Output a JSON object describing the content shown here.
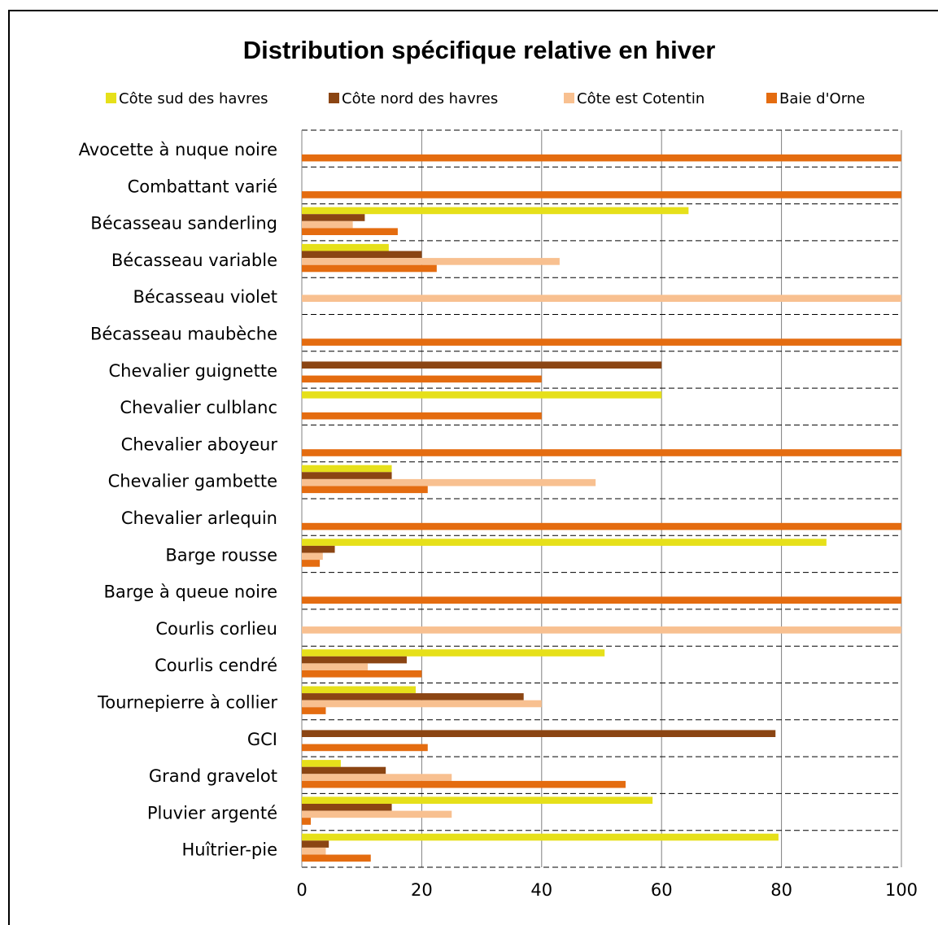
{
  "chart_data": {
    "type": "bar",
    "orientation": "horizontal",
    "title": "Distribution spécifique relative en hiver",
    "xlabel": "",
    "ylabel": "",
    "xlim": [
      0,
      100
    ],
    "ticks": [
      "0",
      "20",
      "40",
      "60",
      "80",
      "100"
    ],
    "legend_position": "top",
    "grid": "dashed horizontal separators, solid vertical gridlines",
    "categories": [
      "Avocette à nuque noire",
      "Combattant varié",
      "Bécasseau sanderling",
      "Bécasseau variable",
      "Bécasseau violet",
      "Bécasseau maubèche",
      "Chevalier guignette",
      "Chevalier culblanc",
      "Chevalier aboyeur",
      "Chevalier gambette",
      "Chevalier arlequin",
      "Barge rousse",
      "Barge à queue noire",
      "Courlis corlieu",
      "Courlis cendré",
      "Tournepierre à collier",
      "GCI",
      "Grand gravelot",
      "Pluvier argenté",
      "Huîtrier-pie"
    ],
    "series": [
      {
        "name": "Côte sud des havres",
        "color": "#e6e01a",
        "values": [
          0,
          0,
          64.5,
          14.5,
          0,
          0,
          0,
          60,
          0,
          15,
          0,
          87.5,
          0,
          0,
          50.5,
          19,
          0,
          6.5,
          58.5,
          79.5
        ]
      },
      {
        "name": "Côte nord des havres",
        "color": "#8b4513",
        "values": [
          0,
          0,
          10.5,
          20,
          0,
          0,
          60,
          0,
          0,
          15,
          0,
          5.5,
          0,
          0,
          17.5,
          37,
          79,
          14,
          15,
          4.5
        ]
      },
      {
        "name": "Côte est Cotentin",
        "color": "#f8c090",
        "values": [
          0,
          0,
          8.5,
          43,
          100,
          0,
          0,
          0,
          0,
          49,
          0,
          3.5,
          0,
          100,
          11,
          40,
          0,
          25,
          25,
          4
        ]
      },
      {
        "name": "Baie d'Orne",
        "color": "#e46c10",
        "values": [
          100,
          100,
          16,
          22.5,
          0,
          100,
          40,
          40,
          100,
          21,
          100,
          3,
          100,
          0,
          20,
          4,
          21,
          54,
          1.5,
          11.5
        ]
      }
    ]
  }
}
